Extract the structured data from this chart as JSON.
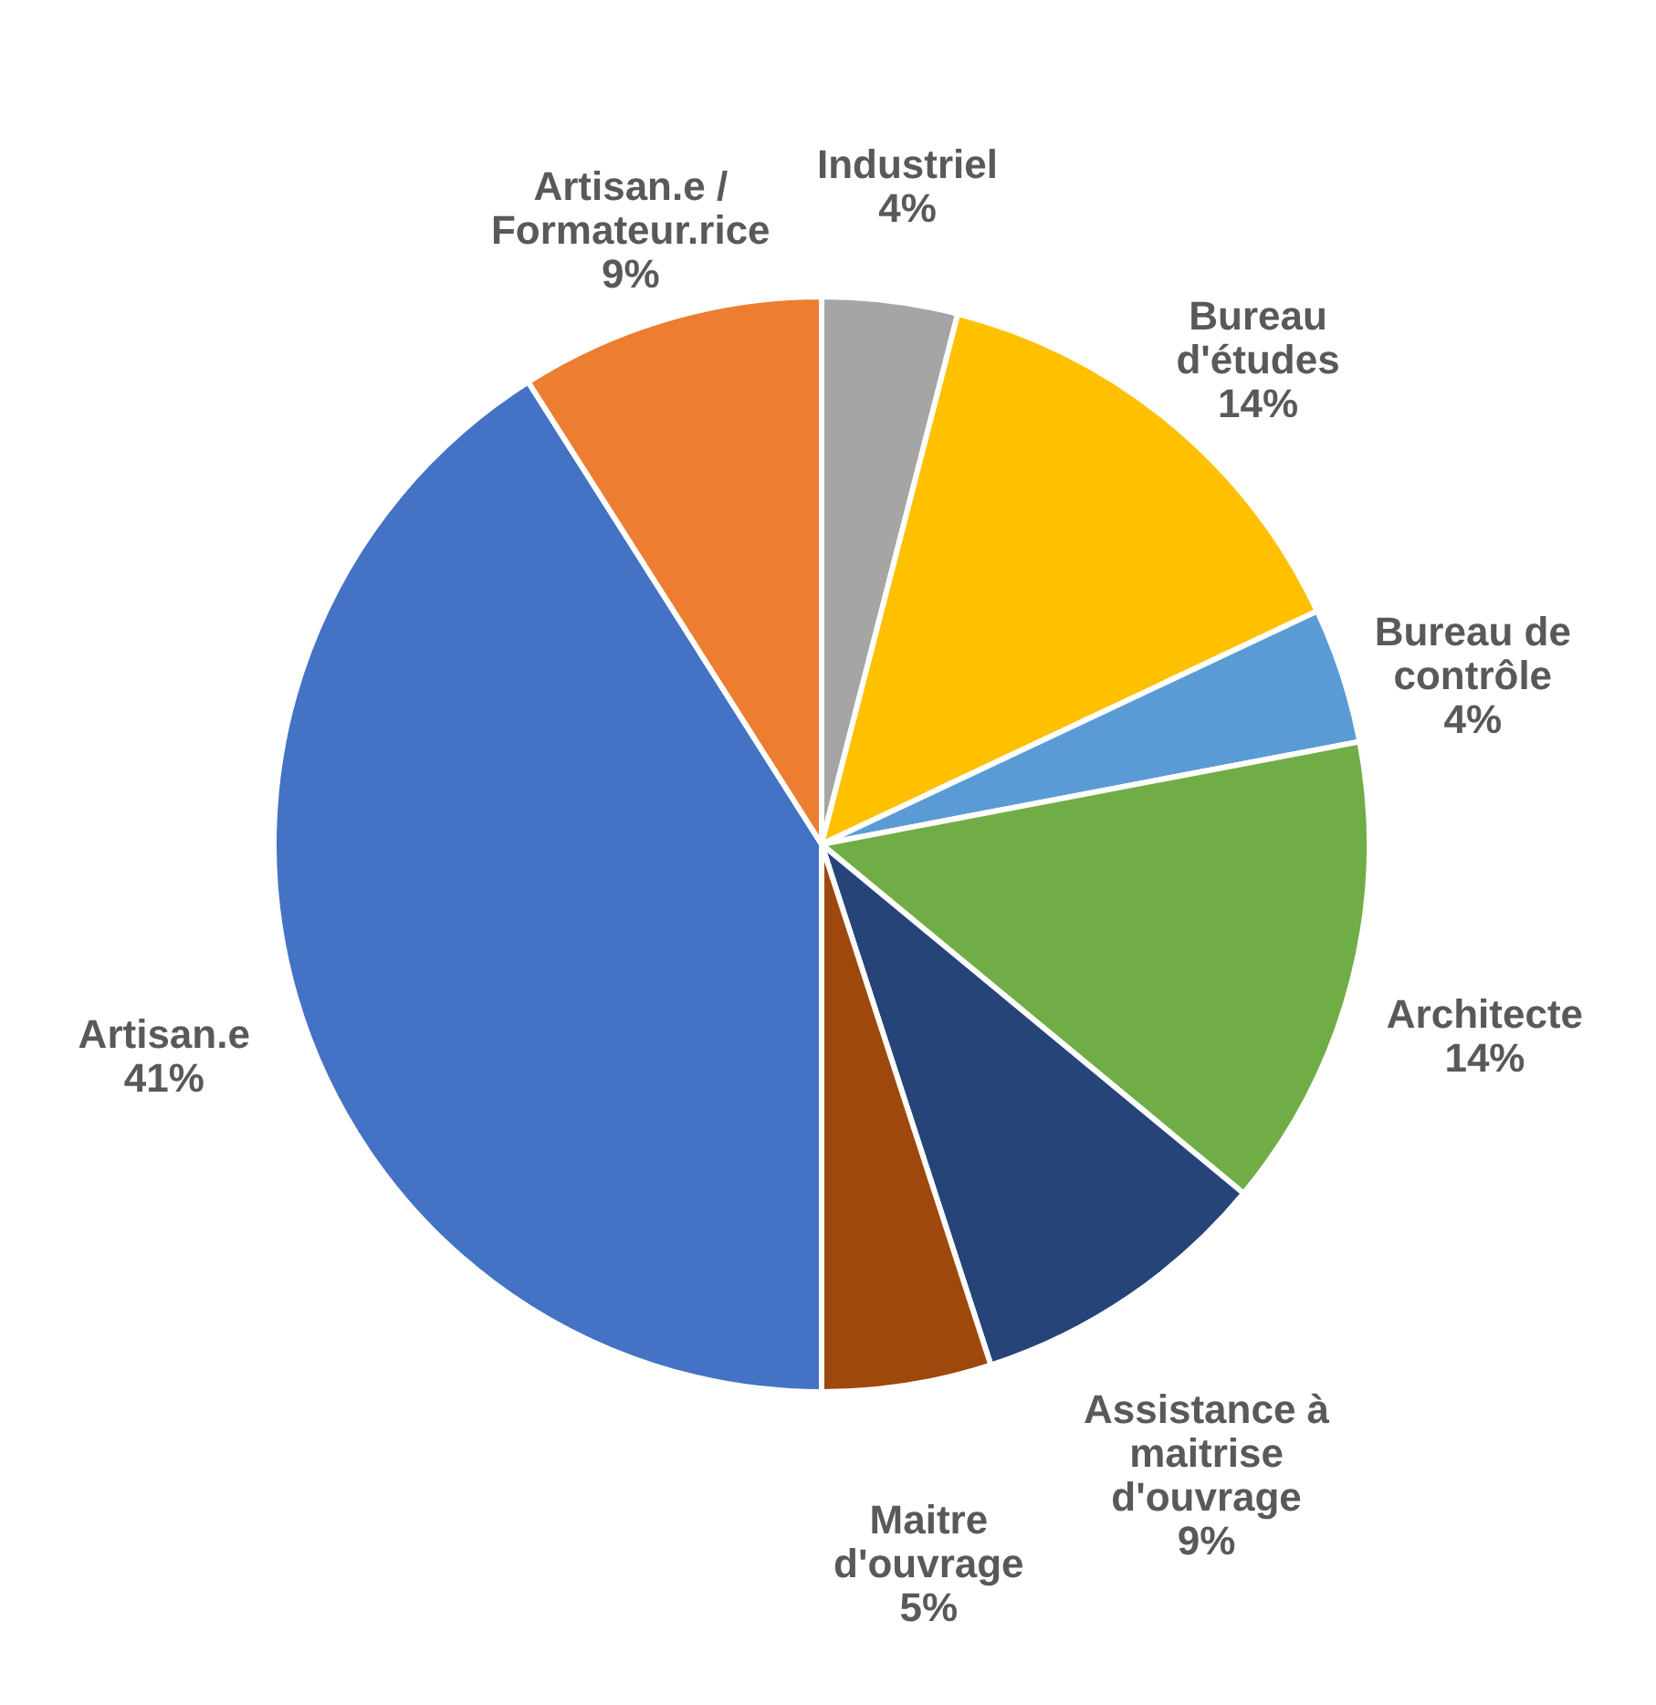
{
  "chart_data": {
    "type": "pie",
    "categories": [
      "Industriel",
      "Bureau d'études",
      "Bureau de contrôle",
      "Architecte",
      "Assistance à maitrise d'ouvrage",
      "Maitre d'ouvrage",
      "Artisan.e",
      "Artisan.e / Formateur.rice"
    ],
    "values": [
      4,
      14,
      4,
      14,
      9,
      5,
      41,
      9
    ],
    "value_labels": [
      "4%",
      "14%",
      "4%",
      "14%",
      "9%",
      "5%",
      "41%",
      "9%"
    ],
    "colors": [
      "#a5a5a5",
      "#ffc000",
      "#5b9bd5",
      "#70ad47",
      "#264478",
      "#9e480e",
      "#4472c4",
      "#ed7d31"
    ],
    "legend": false
  }
}
